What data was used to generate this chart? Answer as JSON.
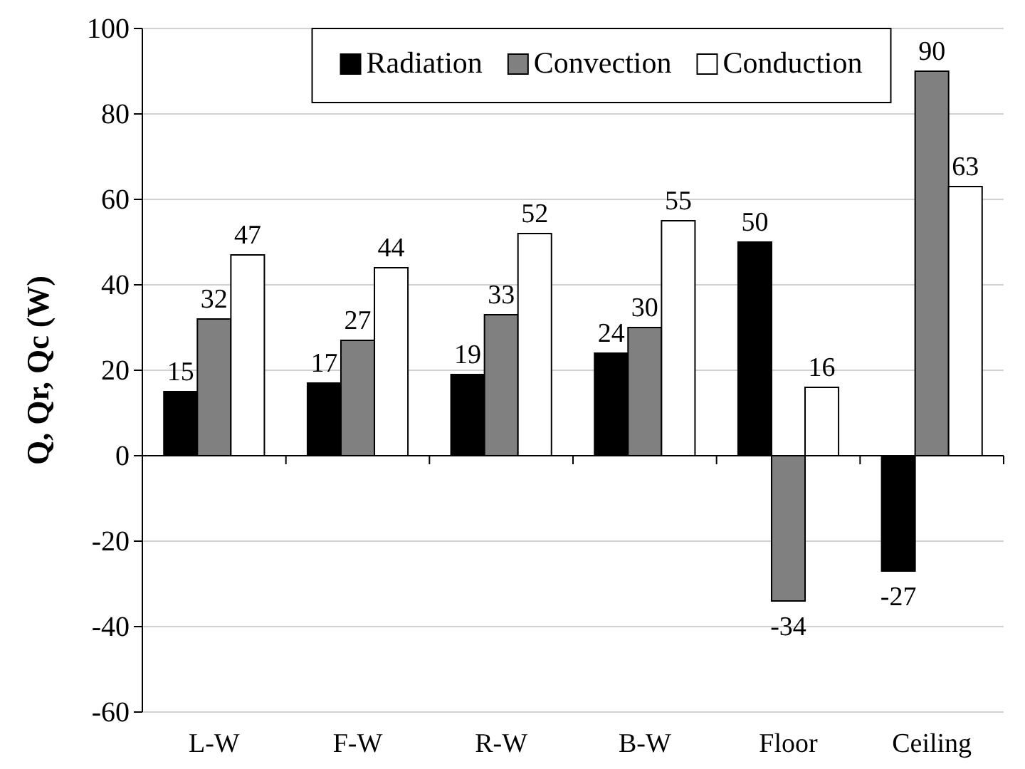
{
  "chart_data": {
    "type": "bar",
    "ylabel": "Q, Qr, Qc (W)",
    "categories": [
      "L-W",
      "F-W",
      "R-W",
      "B-W",
      "Floor",
      "Ceiling"
    ],
    "series": [
      {
        "name": "Radiation",
        "color": "#000000",
        "values": [
          15,
          17,
          19,
          24,
          50,
          -27
        ]
      },
      {
        "name": "Convection",
        "color": "#808080",
        "values": [
          32,
          27,
          33,
          30,
          -34,
          90
        ]
      },
      {
        "name": "Conduction",
        "color": "#ffffff",
        "values": [
          47,
          44,
          52,
          55,
          16,
          63
        ]
      }
    ],
    "ylim": [
      -60,
      100
    ],
    "yticks": [
      -60,
      -40,
      -20,
      0,
      20,
      40,
      60,
      80,
      100
    ],
    "grid": "y",
    "legend": "top",
    "data_labels": true
  }
}
